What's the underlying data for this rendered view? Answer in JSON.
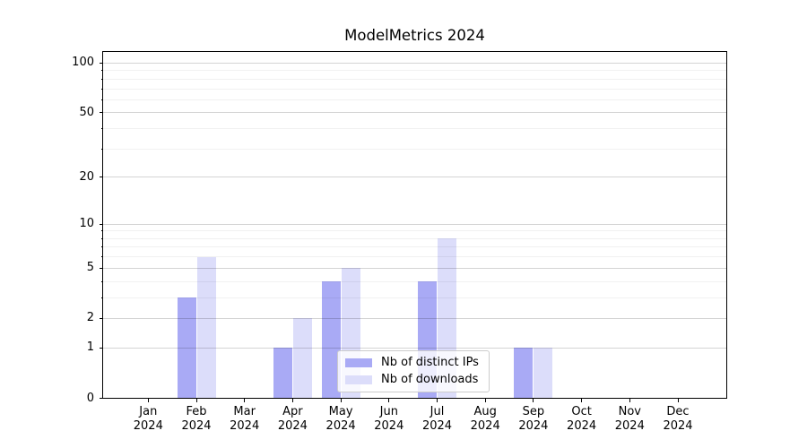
{
  "chart_data": {
    "type": "bar",
    "title": "ModelMetrics 2024",
    "categories": [
      "Jan 2024",
      "Feb 2024",
      "Mar 2024",
      "Apr 2024",
      "May 2024",
      "Jun 2024",
      "Jul 2024",
      "Aug 2024",
      "Sep 2024",
      "Oct 2024",
      "Nov 2024",
      "Dec 2024"
    ],
    "x_tick_labels": [
      {
        "month": "Jan",
        "year": "2024"
      },
      {
        "month": "Feb",
        "year": "2024"
      },
      {
        "month": "Mar",
        "year": "2024"
      },
      {
        "month": "Apr",
        "year": "2024"
      },
      {
        "month": "May",
        "year": "2024"
      },
      {
        "month": "Jun",
        "year": "2024"
      },
      {
        "month": "Jul",
        "year": "2024"
      },
      {
        "month": "Aug",
        "year": "2024"
      },
      {
        "month": "Sep",
        "year": "2024"
      },
      {
        "month": "Oct",
        "year": "2024"
      },
      {
        "month": "Nov",
        "year": "2024"
      },
      {
        "month": "Dec",
        "year": "2024"
      }
    ],
    "series": [
      {
        "name": "Nb of distinct IPs",
        "color": "#a9aaf5",
        "values": [
          0,
          3,
          0,
          1,
          4,
          0,
          4,
          0,
          1,
          0,
          0,
          0
        ]
      },
      {
        "name": "Nb of downloads",
        "color": "#dcddfa",
        "values": [
          0,
          6,
          0,
          2,
          5,
          0,
          8,
          0,
          1,
          0,
          0,
          0
        ]
      }
    ],
    "y_axis": {
      "scale": "log1p",
      "tick_labels": [
        "0",
        "1",
        "2",
        "5",
        "10",
        "20",
        "50",
        "100"
      ],
      "tick_values": [
        0,
        1,
        2,
        5,
        10,
        20,
        50,
        100
      ],
      "minor_tick_values": [
        3,
        4,
        6,
        7,
        8,
        9,
        30,
        40,
        60,
        70,
        80,
        90
      ],
      "ylim": [
        0,
        117
      ]
    },
    "xlabel": "",
    "ylabel": "",
    "grid": true,
    "legend_position": "lower-center"
  },
  "colors": {
    "background": "#ffffff",
    "spine": "#000000",
    "grid_major": "rgba(0,0,0,0.17)",
    "grid_minor": "rgba(0,0,0,0.055)",
    "text": "#000000",
    "legend_border": "#cccccc",
    "legend_background": "rgba(255,255,255,0.8)"
  }
}
